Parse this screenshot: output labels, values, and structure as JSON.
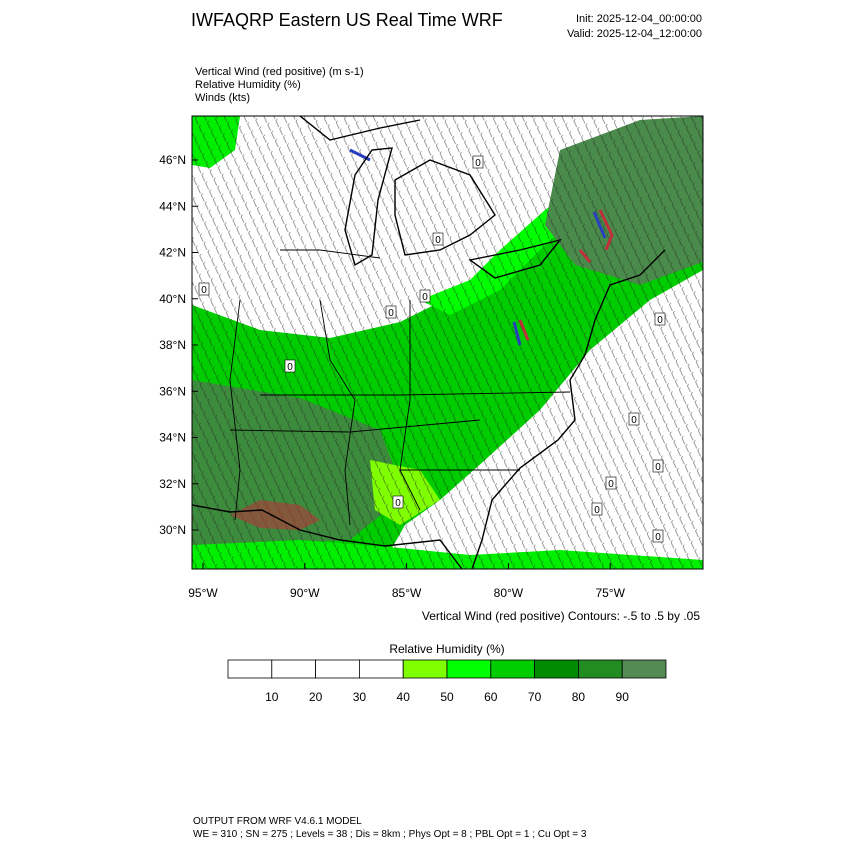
{
  "header": {
    "title": "IWFAQRP Eastern US Real Time WRF",
    "init": "Init: 2025-12-04_00:00:00",
    "valid": "Valid: 2025-12-04_12:00:00"
  },
  "fields": [
    "Vertical Wind (red positive)   (m s-1)",
    "Relative Humidity   (%)",
    "Winds   (kts)"
  ],
  "map": {
    "lat_labels": [
      "46°N",
      "44°N",
      "42°N",
      "40°N",
      "38°N",
      "36°N",
      "34°N",
      "32°N",
      "30°N"
    ],
    "lon_labels": [
      "95°W",
      "90°W",
      "85°W",
      "80°W",
      "75°W"
    ],
    "contour_labels": [
      "0",
      "0",
      "0",
      "0",
      "0",
      "0",
      "0",
      "0",
      "0",
      "0",
      "0",
      "0",
      "0"
    ],
    "contour_note": "Vertical Wind (red positive) Contours: -.5 to .5 by .05"
  },
  "colorbar": {
    "title": "Relative Humidity  (%)",
    "colors": [
      "#ffffff",
      "#ffffff",
      "#ffffff",
      "#ffffff",
      "#7fff00",
      "#00ff00",
      "#00cd00",
      "#008b00",
      "#228b22",
      "#548b54"
    ],
    "labels": [
      "10",
      "20",
      "30",
      "40",
      "50",
      "60",
      "70",
      "80",
      "90"
    ]
  },
  "footer": {
    "line1": "OUTPUT FROM WRF V4.6.1 MODEL",
    "line2": "WE = 310 ; SN = 275 ; Levels = 38 ; Dis = 8km ; Phys Opt = 8 ; PBL Opt = 1 ; Cu Opt = 3"
  }
}
